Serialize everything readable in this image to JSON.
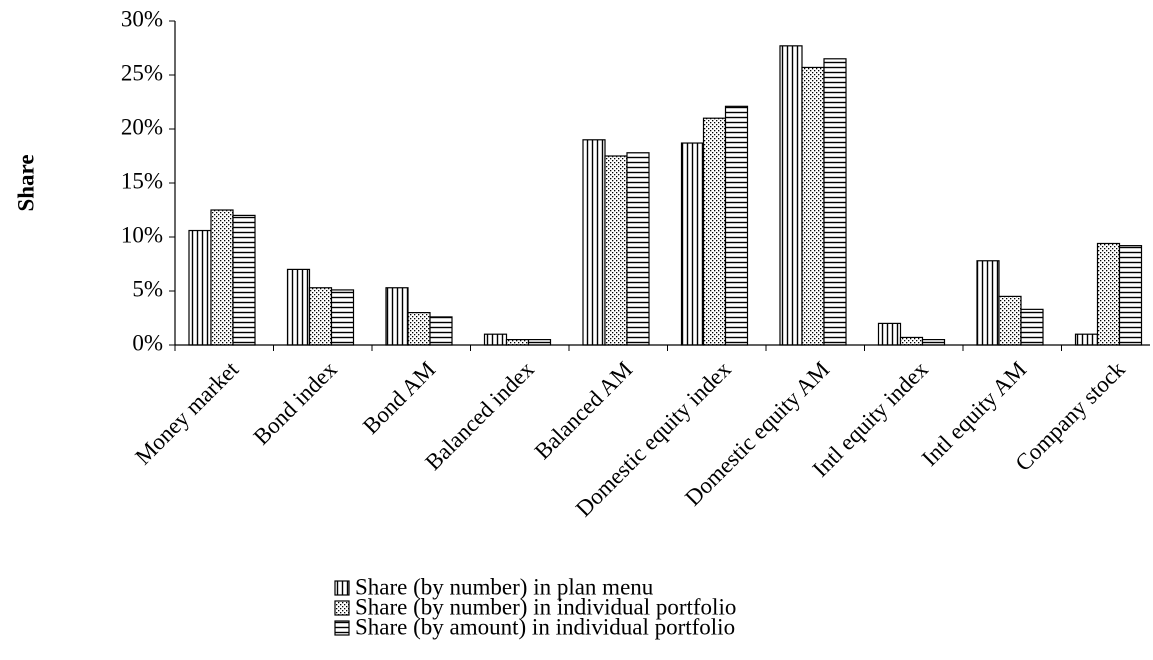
{
  "chart_data": {
    "type": "bar",
    "title": "",
    "xlabel": "",
    "ylabel": "Share",
    "ylim": [
      0,
      30
    ],
    "yticks": [
      "0%",
      "5%",
      "10%",
      "15%",
      "20%",
      "25%",
      "30%"
    ],
    "grid": false,
    "legend_position": "bottom",
    "categories": [
      "Money market",
      "Bond index",
      "Bond AM",
      "Balanced index",
      "Balanced AM",
      "Domestic equity index",
      "Domestic equity AM",
      "Intl equity index",
      "Intl equity AM",
      "Company stock"
    ],
    "series": [
      {
        "name": "Share (by number) in plan menu",
        "pattern": "vertical-lines",
        "values": [
          10.6,
          7.0,
          5.3,
          1.0,
          19.0,
          18.7,
          27.7,
          2.0,
          7.8,
          1.0
        ]
      },
      {
        "name": "Share (by number) in individual portfolio",
        "pattern": "dots",
        "values": [
          12.5,
          5.3,
          3.0,
          0.5,
          17.5,
          21.0,
          25.7,
          0.7,
          4.5,
          9.4
        ]
      },
      {
        "name": "Share (by amount) in individual portfolio",
        "pattern": "horizontal-lines",
        "values": [
          12.0,
          5.1,
          2.6,
          0.5,
          17.8,
          22.1,
          26.5,
          0.5,
          3.3,
          9.2
        ]
      }
    ],
    "colors": {
      "stroke": "#000000",
      "background": "#ffffff"
    }
  }
}
